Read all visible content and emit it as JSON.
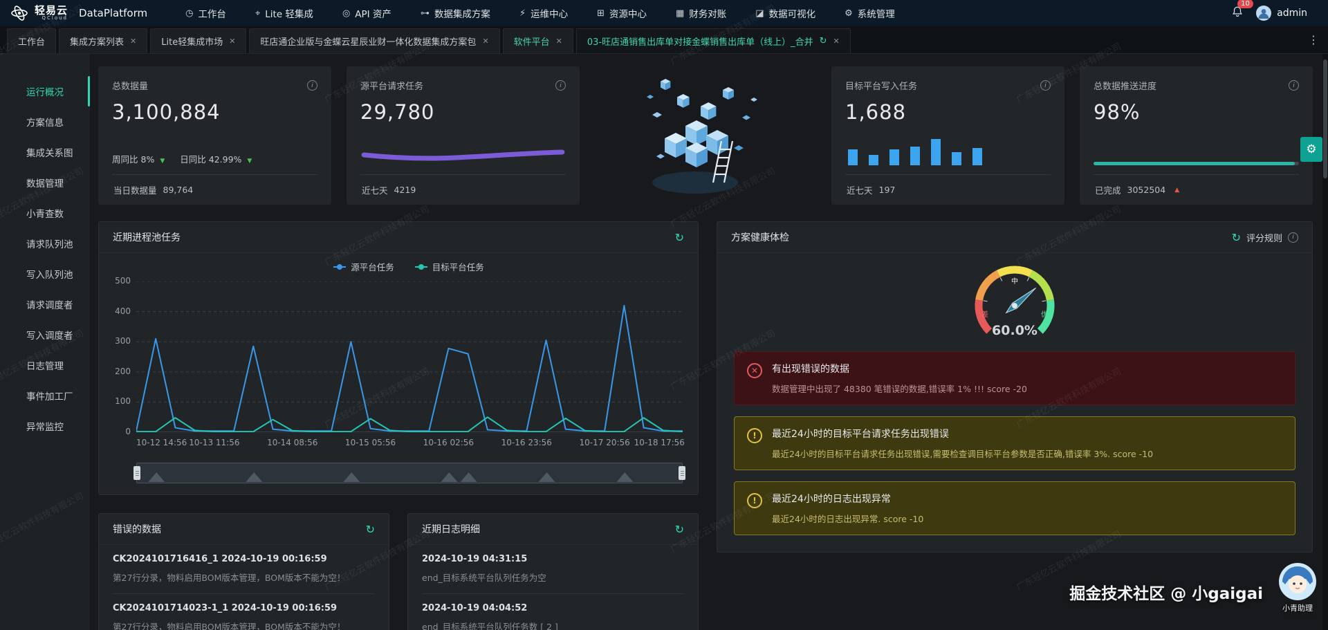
{
  "topnav": {
    "brand": "轻易云",
    "brand_sub": "QCloud",
    "product": "DataPlatform",
    "items": [
      {
        "label": "工作台",
        "glyph": "◷",
        "icon": "workbench-icon"
      },
      {
        "label": "Lite 轻集成",
        "glyph": "⌖",
        "icon": "lite-integration-icon"
      },
      {
        "label": "API 资产",
        "glyph": "◎",
        "icon": "api-assets-icon"
      },
      {
        "label": "数据集成方案",
        "glyph": "⊶",
        "icon": "integration-plan-icon"
      },
      {
        "label": "运维中心",
        "glyph": "⚡",
        "icon": "ops-center-icon"
      },
      {
        "label": "资源中心",
        "glyph": "⊞",
        "icon": "resource-center-icon"
      },
      {
        "label": "财务对账",
        "glyph": "▦",
        "icon": "finance-icon"
      },
      {
        "label": "数据可视化",
        "glyph": "◪",
        "icon": "dataviz-icon"
      },
      {
        "label": "系统管理",
        "glyph": "⚙",
        "icon": "system-icon"
      }
    ],
    "notification_count": "10",
    "username": "admin"
  },
  "tabbar": {
    "tabs": [
      {
        "label": "工作台",
        "closable": false,
        "refreshable": false,
        "active": false,
        "highlight": false
      },
      {
        "label": "集成方案列表",
        "closable": true,
        "refreshable": false,
        "active": false,
        "highlight": false
      },
      {
        "label": "Lite轻集成市场",
        "closable": true,
        "refreshable": false,
        "active": false,
        "highlight": false
      },
      {
        "label": "旺店通企业版与金蝶云星辰业财一体化数据集成方案包",
        "closable": true,
        "refreshable": false,
        "active": false,
        "highlight": false
      },
      {
        "label": "软件平台",
        "closable": true,
        "refreshable": false,
        "active": false,
        "highlight": true
      },
      {
        "label": "03-旺店通销售出库单对接金蝶销售出库单（线上）_合并",
        "closable": true,
        "refreshable": true,
        "active": true,
        "highlight": false
      }
    ]
  },
  "sidebar": {
    "active_index": 0,
    "items": [
      "运行概况",
      "方案信息",
      "集成关系图",
      "数据管理",
      "小青查数",
      "请求队列池",
      "写入队列池",
      "请求调度者",
      "写入调度者",
      "日志管理",
      "事件加工厂",
      "异常监控"
    ]
  },
  "stats": {
    "cards": [
      {
        "title": "总数据量",
        "value": "3,100,884",
        "week_label": "周同比",
        "week_value": "8%",
        "day_label": "日同比",
        "day_value": "42.99%",
        "footer_label": "当日数据量",
        "footer_value": "89,764"
      },
      {
        "title": "源平台请求任务",
        "value": "29,780",
        "footer_label": "近七天",
        "footer_value": "4219",
        "spark_color": "#7b5cd6"
      },
      {
        "title": "目标平台写入任务",
        "value": "1,688",
        "footer_label": "近七天",
        "footer_value": "197",
        "bar_color": "#3da4f0",
        "bars": [
          55,
          35,
          55,
          65,
          90,
          45,
          60
        ]
      },
      {
        "title": "总数据推送进度",
        "value": "98%",
        "footer_label": "已完成",
        "footer_value": "3052504",
        "progress_color": "#2db5a5",
        "progress_pct": 98
      }
    ]
  },
  "process_panel": {
    "title": "近期进程池任务",
    "chart_data": {
      "type": "line",
      "title": "近期进程池任务",
      "x_ticks": [
        "10-12 14:56",
        "10-13 11:56",
        "10-14 08:56",
        "10-15 05:56",
        "10-16 02:56",
        "10-16 23:56",
        "10-17 20:56",
        "10-18 17:56"
      ],
      "y_ticks": [
        0,
        100,
        200,
        300,
        400,
        500
      ],
      "ylim": [
        0,
        500
      ],
      "grid": "dashed-horizontal",
      "legend_position": "top-center",
      "has_datazoom_brush": true,
      "series": [
        {
          "name": "源平台任务",
          "color": "#3898ec",
          "values": [
            4,
            310,
            15,
            4,
            4,
            4,
            285,
            10,
            4,
            4,
            4,
            300,
            12,
            4,
            4,
            4,
            278,
            260,
            8,
            4,
            4,
            305,
            10,
            4,
            4,
            420,
            15,
            4,
            4
          ]
        },
        {
          "name": "目标平台任务",
          "color": "#23c6b5",
          "values": [
            2,
            2,
            48,
            6,
            2,
            2,
            2,
            42,
            5,
            2,
            2,
            2,
            45,
            6,
            2,
            2,
            2,
            2,
            50,
            6,
            2,
            2,
            46,
            5,
            2,
            2,
            48,
            6,
            2
          ]
        }
      ]
    }
  },
  "health_panel": {
    "title": "方案健康体检",
    "rules_label": "评分规则",
    "gauge": {
      "value": "60.0%",
      "labels": {
        "low": "差",
        "mid": "中",
        "high": "优"
      },
      "segment_colors": [
        "#e85a5a",
        "#ef9f4e",
        "#f2e04e",
        "#b5e04e",
        "#4fe3a2"
      ]
    },
    "alerts": [
      {
        "level": "error",
        "title": "有出现错误的数据",
        "desc": "数据管理中出现了 48380 笔错误的数据,错误率 1% !!! score -20"
      },
      {
        "level": "warning",
        "title": "最近24小时的目标平台请求任务出现错误",
        "desc": "最近24小时的目标平台请求任务出现错误,需要检查调目标平台参数是否正确,错误率 3%. score -10"
      },
      {
        "level": "warning",
        "title": "最近24小时的日志出现异常",
        "desc": "最近24小时的日志出现异常. score -10"
      }
    ]
  },
  "error_panel": {
    "title": "错误的数据",
    "rows": [
      {
        "title": "CK2024101716416_1 2024-10-19 00:16:59",
        "desc": "第27行分录，物料启用BOM版本管理，BOM版本不能为空！"
      },
      {
        "title": "CK2024101714023-1_1 2024-10-19 00:16:59",
        "desc": "第27行分录，物料启用BOM版本管理，BOM版本不能为空！"
      }
    ]
  },
  "log_panel": {
    "title": "近期日志明细",
    "rows": [
      {
        "title": "2024-10-19 04:31:15",
        "desc": "end_目标系统平台队列任务为空"
      },
      {
        "title": "2024-10-19 04:04:52",
        "desc": "end_目标系统平台队列任务数 [ 2 ]"
      }
    ]
  },
  "icons": {
    "refresh": "↻",
    "close": "✕",
    "more": "⋮",
    "info": "i",
    "gear": "⚙",
    "down": "▼",
    "up": "▲",
    "error_glyph": "✕",
    "warning_glyph": "!"
  },
  "watermark": "广东轻亿云软件科技有限公司",
  "credit": {
    "text": "掘金技术社区 @ 小gaigai",
    "assistant": "小青助理"
  }
}
